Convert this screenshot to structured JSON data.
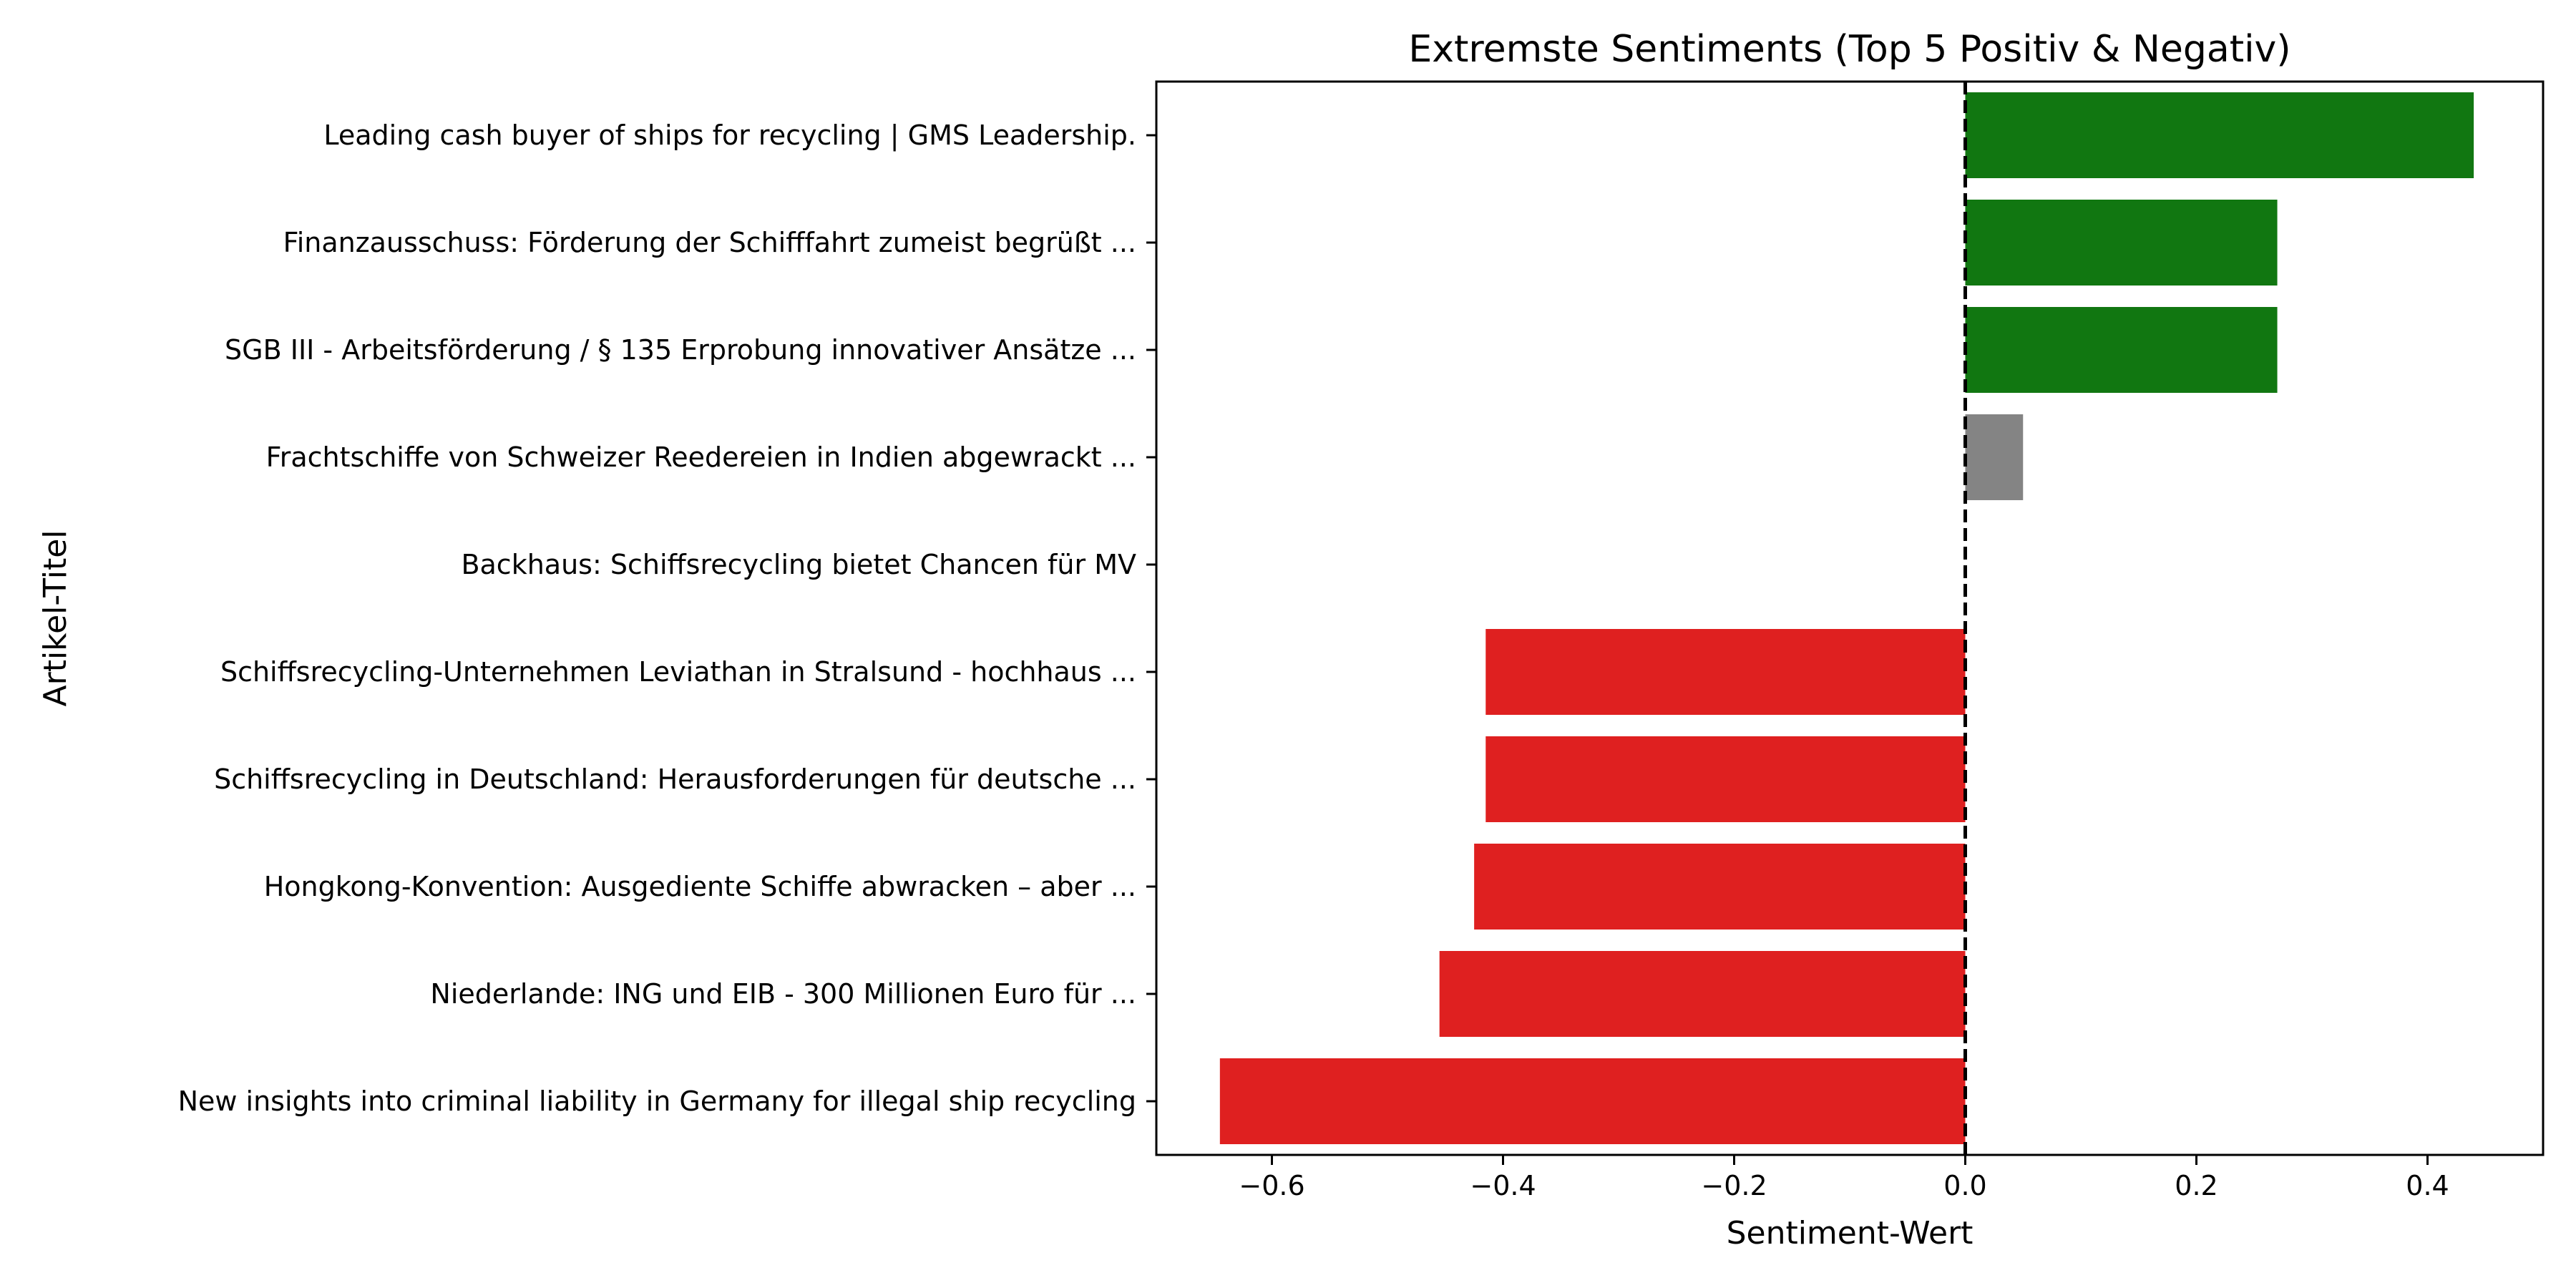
{
  "chart_data": {
    "type": "bar",
    "orientation": "horizontal",
    "title": "Extremste Sentiments (Top 5 Positiv & Negativ)",
    "xlabel": "Sentiment-Wert",
    "ylabel": "Artikel-Titel",
    "xlim": [
      -0.7,
      0.5
    ],
    "xticks": [
      -0.6,
      -0.4,
      -0.2,
      0.0,
      0.2,
      0.4
    ],
    "xtick_labels": [
      "−0.6",
      "−0.4",
      "−0.2",
      "0.0",
      "0.2",
      "0.4"
    ],
    "reference_line": {
      "x": 0.0,
      "style": "dashed",
      "color": "#000000"
    },
    "grid": false,
    "categories": [
      "Leading cash buyer of ships for recycling | GMS Leadership.",
      "Finanzausschuss: Förderung der Schifffahrt zumeist begrüßt ...",
      "SGB III - Arbeitsförderung / § 135 Erprobung innovativer Ansätze ...",
      "Frachtschiffe von Schweizer Reedereien in Indien abgewrackt ...",
      "Backhaus: Schiffsrecycling bietet Chancen für MV",
      "Schiffsrecycling-Unternehmen Leviathan in Stralsund - hochhaus ...",
      "Schiffsrecycling in Deutschland: Herausforderungen für deutsche ...",
      "Hongkong-Konvention: Ausgediente Schiffe abwracken – aber ...",
      "Niederlande: ING und EIB - 300 Millionen Euro für ...",
      "New insights into criminal liability in Germany for illegal ship recycling"
    ],
    "values": [
      0.44,
      0.27,
      0.27,
      0.05,
      0.0,
      -0.415,
      -0.415,
      -0.425,
      -0.455,
      -0.645
    ],
    "colors": [
      "#117711",
      "#117711",
      "#117711",
      "#848484",
      "#848484",
      "#df2020",
      "#df2020",
      "#df2020",
      "#df2020",
      "#df2020"
    ]
  }
}
